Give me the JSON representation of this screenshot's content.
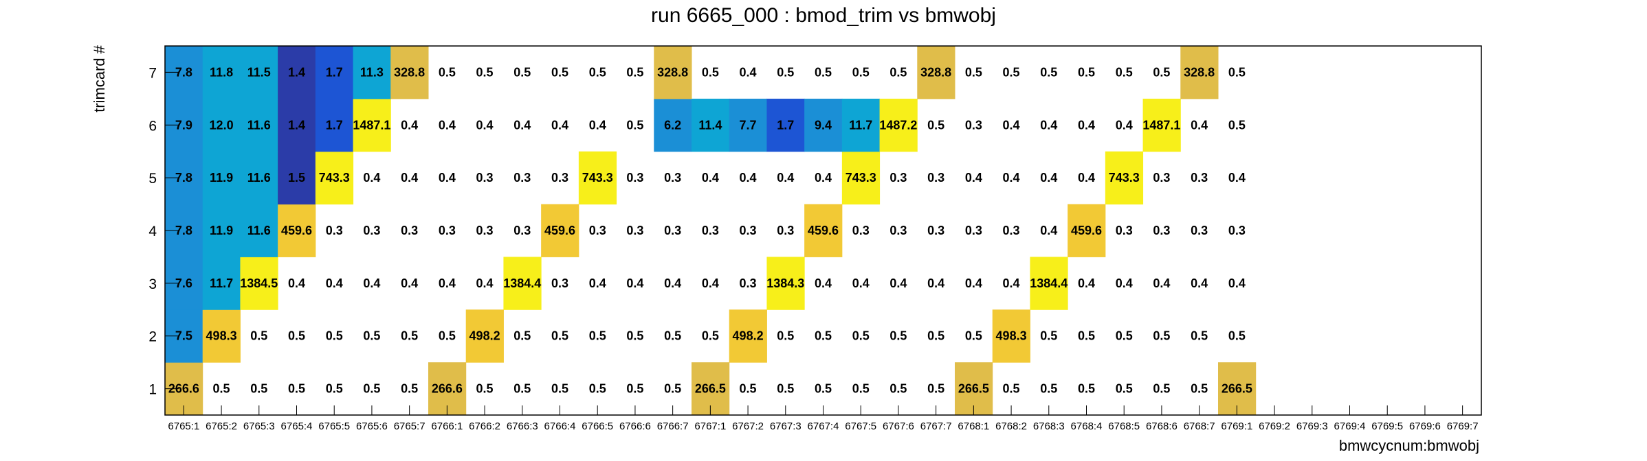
{
  "chart_data": {
    "type": "heatmap",
    "title": "run 6665_000 : bmod_trim vs bmwobj",
    "xlabel": "bmwcycnum:bmwobj",
    "ylabel": "trimcard #",
    "categories": [
      "6765:1",
      "6765:2",
      "6765:3",
      "6765:4",
      "6765:5",
      "6765:6",
      "6765:7",
      "6766:1",
      "6766:2",
      "6766:3",
      "6766:4",
      "6766:5",
      "6766:6",
      "6766:7",
      "6767:1",
      "6767:2",
      "6767:3",
      "6767:4",
      "6767:5",
      "6767:6",
      "6767:7",
      "6768:1",
      "6768:2",
      "6768:3",
      "6768:4",
      "6768:5",
      "6768:6",
      "6768:7",
      "6769:1",
      "6769:2",
      "6769:3",
      "6769:4",
      "6769:5",
      "6769:6",
      "6769:7"
    ],
    "rows": [
      1,
      2,
      3,
      4,
      5,
      6,
      7
    ],
    "values": [
      [
        "266.6",
        "0.5",
        "0.5",
        "0.5",
        "0.5",
        "0.5",
        "0.5",
        "266.6",
        "0.5",
        "0.5",
        "0.5",
        "0.5",
        "0.5",
        "0.5",
        "266.5",
        "0.5",
        "0.5",
        "0.5",
        "0.5",
        "0.5",
        "0.5",
        "266.5",
        "0.5",
        "0.5",
        "0.5",
        "0.5",
        "0.5",
        "0.5",
        "266.5",
        null,
        null,
        null,
        null,
        null,
        null
      ],
      [
        "7.5",
        "498.3",
        "0.5",
        "0.5",
        "0.5",
        "0.5",
        "0.5",
        "0.5",
        "498.2",
        "0.5",
        "0.5",
        "0.5",
        "0.5",
        "0.5",
        "0.5",
        "498.2",
        "0.5",
        "0.5",
        "0.5",
        "0.5",
        "0.5",
        "0.5",
        "498.3",
        "0.5",
        "0.5",
        "0.5",
        "0.5",
        "0.5",
        "0.5",
        null,
        null,
        null,
        null,
        null,
        null
      ],
      [
        "7.6",
        "11.7",
        "1384.5",
        "0.4",
        "0.4",
        "0.4",
        "0.4",
        "0.4",
        "0.4",
        "1384.4",
        "0.3",
        "0.4",
        "0.4",
        "0.4",
        "0.4",
        "0.3",
        "1384.3",
        "0.4",
        "0.4",
        "0.4",
        "0.4",
        "0.4",
        "0.4",
        "1384.4",
        "0.4",
        "0.4",
        "0.4",
        "0.4",
        "0.4",
        null,
        null,
        null,
        null,
        null,
        null
      ],
      [
        "7.8",
        "11.9",
        "11.6",
        "459.6",
        "0.3",
        "0.3",
        "0.3",
        "0.3",
        "0.3",
        "0.3",
        "459.6",
        "0.3",
        "0.3",
        "0.3",
        "0.3",
        "0.3",
        "0.3",
        "459.6",
        "0.3",
        "0.3",
        "0.3",
        "0.3",
        "0.3",
        "0.4",
        "459.6",
        "0.3",
        "0.3",
        "0.3",
        "0.3",
        null,
        null,
        null,
        null,
        null,
        null
      ],
      [
        "7.8",
        "11.9",
        "11.6",
        "1.5",
        "743.3",
        "0.4",
        "0.4",
        "0.4",
        "0.3",
        "0.3",
        "0.3",
        "743.3",
        "0.3",
        "0.3",
        "0.4",
        "0.4",
        "0.4",
        "0.4",
        "743.3",
        "0.3",
        "0.3",
        "0.4",
        "0.4",
        "0.4",
        "0.4",
        "743.3",
        "0.3",
        "0.3",
        "0.4",
        null,
        null,
        null,
        null,
        null,
        null
      ],
      [
        "7.9",
        "12.0",
        "11.6",
        "1.4",
        "1.7",
        "1487.1",
        "0.4",
        "0.4",
        "0.4",
        "0.4",
        "0.4",
        "0.4",
        "0.5",
        "6.2",
        "11.4",
        "7.7",
        "1.7",
        "9.4",
        "11.7",
        "1487.2",
        "0.5",
        "0.3",
        "0.4",
        "0.4",
        "0.4",
        "0.4",
        "1487.1",
        "0.4",
        "0.5",
        null,
        null,
        null,
        null,
        null,
        null
      ],
      [
        "7.8",
        "11.8",
        "11.5",
        "1.4",
        "1.7",
        "11.3",
        "328.8",
        "0.5",
        "0.5",
        "0.5",
        "0.5",
        "0.5",
        "0.5",
        "328.8",
        "0.5",
        "0.4",
        "0.5",
        "0.5",
        "0.5",
        "0.5",
        "328.8",
        "0.5",
        "0.5",
        "0.5",
        "0.5",
        "0.5",
        "0.5",
        "328.8",
        "0.5",
        null,
        null,
        null,
        null,
        null,
        null
      ]
    ],
    "colors": {
      "frame": "#000000",
      "yellow": "#f7ef1a",
      "gold": "#f2c935",
      "dark_gold": "#e0bd4a",
      "cyan": "#0ea5d4",
      "mid_blue": "#1b8fd6",
      "royal_blue": "#1d55d4",
      "navy": "#2b3ca8"
    }
  }
}
